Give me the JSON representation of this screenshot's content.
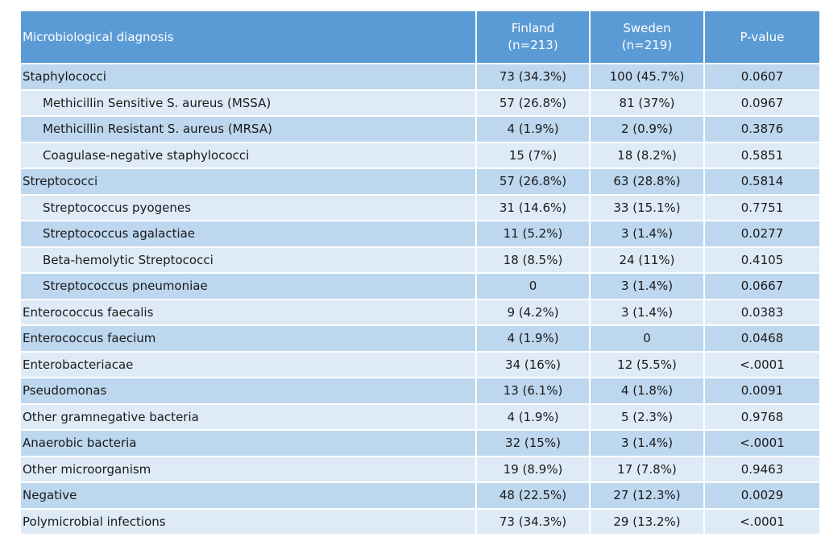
{
  "header": {
    "col1": "Microbiological diagnosis",
    "col2_line1": "Finland",
    "col2_line2": "(n=213)",
    "col3_line1": "Sweden",
    "col3_line2": "(n=219)",
    "col4": "P-value"
  },
  "rows": [
    {
      "label": "Staphylococci",
      "finland": "73 (34.3%)",
      "sweden": "100 (45.7%)",
      "p": "0.0607"
    },
    {
      "label": "Methicillin Sensitive S. aureus (MSSA)",
      "finland": "57 (26.8%)",
      "sweden": "81 (37%)",
      "p": "0.0967"
    },
    {
      "label": "Methicillin Resistant S. aureus (MRSA)",
      "finland": "4 (1.9%)",
      "sweden": "2 (0.9%)",
      "p": "0.3876"
    },
    {
      "label": "Coagulase-negative staphylococci",
      "finland": "15 (7%)",
      "sweden": "18 (8.2%)",
      "p": "0.5851"
    },
    {
      "label": "Streptococci",
      "finland": "57 (26.8%)",
      "sweden": "63 (28.8%)",
      "p": "0.5814"
    },
    {
      "label": "Streptococcus pyogenes",
      "finland": "31 (14.6%)",
      "sweden": "33 (15.1%)",
      "p": "0.7751"
    },
    {
      "label": "Streptococcus agalactiae",
      "finland": "11 (5.2%)",
      "sweden": "3 (1.4%)",
      "p": "0.0277"
    },
    {
      "label": "Beta-hemolytic Streptococci",
      "finland": "18 (8.5%)",
      "sweden": "24 (11%)",
      "p": "0.4105"
    },
    {
      "label": "Streptococcus pneumoniae",
      "finland": "0",
      "sweden": "3 (1.4%)",
      "p": "0.0667"
    },
    {
      "label": "Enterococcus faecalis",
      "finland": "9 (4.2%)",
      "sweden": "3 (1.4%)",
      "p": "0.0383"
    },
    {
      "label": "Enterococcus faecium",
      "finland": "4 (1.9%)",
      "sweden": "0",
      "p": "0.0468"
    },
    {
      "label": "Enterobacteriacae",
      "finland": "34 (16%)",
      "sweden": "12 (5.5%)",
      "p": "<.0001"
    },
    {
      "label": "Pseudomonas",
      "finland": "13 (6.1%)",
      "sweden": "4 (1.8%)",
      "p": "0.0091"
    },
    {
      "label": "Other gramnegative bacteria",
      "finland": "4 (1.9%)",
      "sweden": "5 (2.3%)",
      "p": "0.9768"
    },
    {
      "label": "Anaerobic bacteria",
      "finland": "32 (15%)",
      "sweden": "3 (1.4%)",
      "p": "<.0001"
    },
    {
      "label": "Other microorganism",
      "finland": "19 (8.9%)",
      "sweden": "17 (7.8%)",
      "p": "0.9463"
    },
    {
      "label": "Negative",
      "finland": "48 (22.5%)",
      "sweden": "27 (12.3%)",
      "p": "0.0029"
    },
    {
      "label": "Polymicrobial infections",
      "finland": "73 (34.3%)",
      "sweden": "29 (13.2%)",
      "p": "<.0001"
    }
  ],
  "colors": {
    "header_bg": "#5b9bd5",
    "row_dark": "#bdd7ee",
    "row_light": "#deebf7",
    "header_text": "#ffffff"
  }
}
